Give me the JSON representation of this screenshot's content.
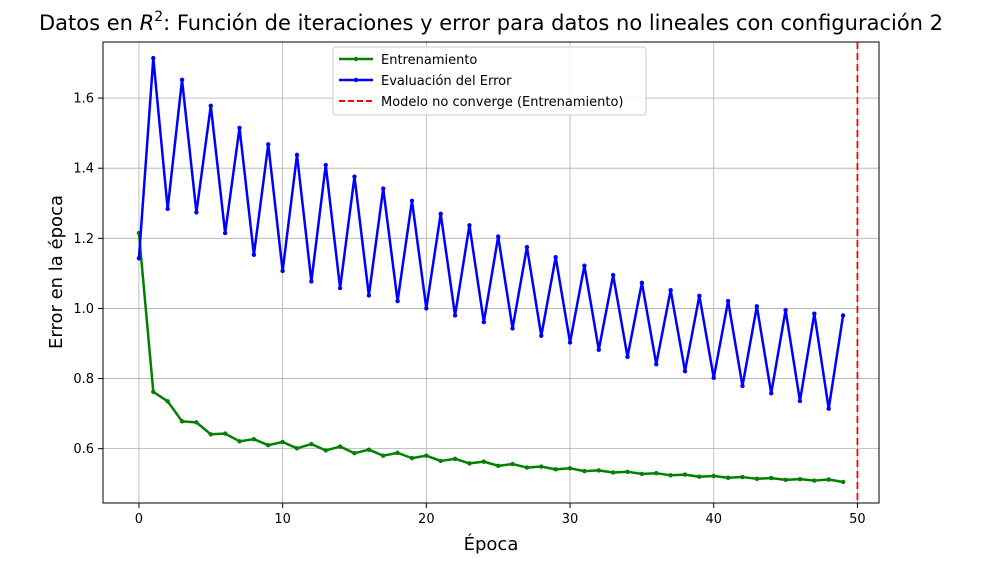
{
  "chart_data": {
    "type": "line",
    "title_prefix": "Datos en ",
    "title_math_base": "R",
    "title_math_sup": "2",
    "title_suffix": ": Función de iteraciones y error para datos no lineales con configuración 2",
    "xlabel": "Época",
    "ylabel": "Error en la época",
    "xlim": [
      -2.5,
      51.5
    ],
    "ylim": [
      0.445,
      1.76
    ],
    "x_ticks": [
      0,
      10,
      20,
      30,
      40,
      50
    ],
    "y_ticks": [
      0.6,
      0.8,
      1.0,
      1.2,
      1.4,
      1.6
    ],
    "y_tick_labels": [
      "0.6",
      "0.8",
      "1.0",
      "1.2",
      "1.4",
      "1.6"
    ],
    "grid": true,
    "legend_position": "top-center",
    "x": [
      0,
      1,
      2,
      3,
      4,
      5,
      6,
      7,
      8,
      9,
      10,
      11,
      12,
      13,
      14,
      15,
      16,
      17,
      18,
      19,
      20,
      21,
      22,
      23,
      24,
      25,
      26,
      27,
      28,
      29,
      30,
      31,
      32,
      33,
      34,
      35,
      36,
      37,
      38,
      39,
      40,
      41,
      42,
      43,
      44,
      45,
      46,
      47,
      48,
      49
    ],
    "series": [
      {
        "name": "Entrenamiento",
        "color": "#008000",
        "values": [
          1.215,
          0.762,
          0.735,
          0.678,
          0.675,
          0.641,
          0.643,
          0.621,
          0.627,
          0.61,
          0.619,
          0.601,
          0.613,
          0.595,
          0.606,
          0.587,
          0.597,
          0.58,
          0.588,
          0.573,
          0.58,
          0.565,
          0.571,
          0.558,
          0.563,
          0.551,
          0.556,
          0.546,
          0.549,
          0.541,
          0.544,
          0.536,
          0.538,
          0.532,
          0.534,
          0.528,
          0.53,
          0.524,
          0.526,
          0.52,
          0.522,
          0.517,
          0.519,
          0.514,
          0.516,
          0.511,
          0.513,
          0.509,
          0.512,
          0.505
        ]
      },
      {
        "name": "Evaluación del Error",
        "color": "#0000ff",
        "values": [
          1.143,
          1.714,
          1.284,
          1.652,
          1.274,
          1.578,
          1.215,
          1.515,
          1.153,
          1.468,
          1.107,
          1.438,
          1.077,
          1.409,
          1.058,
          1.376,
          1.037,
          1.342,
          1.021,
          1.307,
          1.0,
          1.27,
          0.98,
          1.237,
          0.961,
          1.205,
          0.943,
          1.175,
          0.922,
          1.146,
          0.903,
          1.122,
          0.882,
          1.095,
          0.862,
          1.073,
          0.841,
          1.052,
          0.821,
          1.036,
          0.802,
          1.021,
          0.779,
          1.006,
          0.758,
          0.995,
          0.736,
          0.985,
          0.714,
          0.98
        ]
      }
    ],
    "vline": {
      "x": 50,
      "name": "Modelo no converge (Entrenamiento)",
      "color": "#ff0000",
      "style": "dashed"
    }
  }
}
